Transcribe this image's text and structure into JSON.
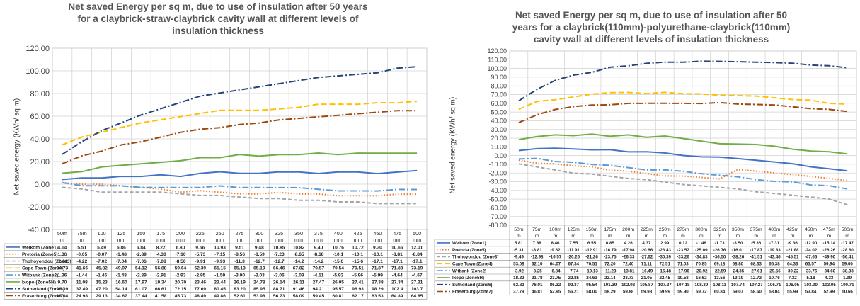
{
  "chart_data": [
    {
      "type": "line",
      "title": "Net saved Energy per sq m, due to use of insulation after 50 years for a claybrick-straw-claybrick cavity wall at different levels of insulation thickness",
      "ylabel": "Net saved energy (KWh/ sq m)",
      "xlabel": "",
      "ylim": [
        -40,
        120
      ],
      "ytick_step": 20,
      "ytick_labels": [
        "120.00",
        "100.00",
        "80.00",
        "60.00",
        "40.00",
        "20.00",
        "0.00",
        "-20.00",
        "-40.00"
      ],
      "grid": true,
      "legend": "table-below",
      "categories": [
        "50m m",
        "75m m",
        "100 mm",
        "125 mm",
        "150 mm",
        "175 mm",
        "200 mm",
        "225 mm",
        "250 mm",
        "275 mm",
        "300 mm",
        "325 mm",
        "350 mm",
        "375 mm",
        "400 mm",
        "425 mm",
        "450 mm",
        "475 mm",
        "500 mm"
      ],
      "series": [
        {
          "name": "Welkom (Zone1)",
          "color": "#4472C4",
          "dash": "solid",
          "values": [
            4.14,
            5.51,
            5.49,
            6.86,
            6.84,
            8.22,
            6.8,
            9.56,
            10.93,
            9.51,
            9.48,
            10.85,
            10.82,
            9.4,
            10.76,
            10.72,
            9.3,
            10.66,
            12.01
          ],
          "labels": [
            "4.14",
            "5.51",
            "5.49",
            "6.86",
            "6.84",
            "8.22",
            "6.80",
            "9.56",
            "10.93",
            "9.51",
            "9.48",
            "10.85",
            "10.82",
            "9.40",
            "10.76",
            "10.72",
            "9.30",
            "10.66",
            "12.01"
          ]
        },
        {
          "name": "Pretoria (Zone5)",
          "color": "#ED7D31",
          "dash": "dot",
          "values": [
            1.36,
            -0.05,
            -0.07,
            -1.48,
            -2.89,
            -4.3,
            -7.1,
            -5.73,
            -7.15,
            -8.56,
            -8.59,
            -7.23,
            -8.65,
            -8.68,
            -10.1,
            -10.1,
            -10.1,
            -8.81,
            -8.84
          ],
          "labels": [
            "1.36",
            "-0.05",
            "-0.07",
            "-1.48",
            "-2.89",
            "-4.30",
            "-7.10",
            "-5.73",
            "-7.15",
            "-8.56",
            "-8.59",
            "-7.23",
            "-8.65",
            "-8.68",
            "-10.1",
            "-10.1",
            "-10.1",
            "-8.81",
            "-8.84"
          ]
        },
        {
          "name": "Thohoyondou (Zone3)",
          "color": "#A5A5A5",
          "dash": "dash",
          "values": [
            -2.81,
            -4.22,
            -7.02,
            -7.04,
            -7.06,
            -7.08,
            -8.5,
            -9.91,
            -9.93,
            -11.3,
            -12.7,
            -12.7,
            -14.2,
            -14.2,
            -15.6,
            -15.6,
            -17.1,
            -17.1,
            -17.1
          ],
          "labels": [
            "-2.81",
            "-4.22",
            "-7.02",
            "-7.04",
            "-7.06",
            "-7.08",
            "-8.50",
            "-9.91",
            "-9.93",
            "-11.3",
            "-12.7",
            "-12.7",
            "-14.2",
            "-14.2",
            "-15.6",
            "-15.6",
            "-17.1",
            "-17.1",
            "-17.1"
          ]
        },
        {
          "name": "Cape Town (Zone4)",
          "color": "#FFC000",
          "dash": "longdash",
          "values": [
            34.73,
            41.66,
            45.82,
            49.97,
            54.12,
            56.88,
            59.64,
            62.39,
            65.15,
            65.13,
            65.1,
            66.46,
            67.82,
            70.57,
            70.54,
            70.51,
            71.87,
            71.83,
            73.19
          ],
          "labels": [
            "34.73",
            "41.66",
            "45.82",
            "49.97",
            "54.12",
            "56.88",
            "59.64",
            "62.39",
            "65.15",
            "65.13",
            "65.10",
            "66.46",
            "67.82",
            "70.57",
            "70.54",
            "70.51",
            "71.87",
            "71.83",
            "73.19"
          ]
        },
        {
          "name": "Witbank (Zone2)",
          "color": "#5B9BD5",
          "dash": "dashdot",
          "values": [
            1.36,
            -1.44,
            -1.46,
            -1.48,
            -2.89,
            -2.91,
            -2.93,
            -2.95,
            -1.59,
            -3.0,
            -3.03,
            -3.06,
            -3.09,
            -4.51,
            -5.93,
            -5.96,
            -5.99,
            -4.64,
            -4.67
          ],
          "labels": [
            "1.36",
            "-1.44",
            "-1.46",
            "-1.48",
            "-2.89",
            "-2.91",
            "-2.93",
            "-2.95",
            "-1.59",
            "-3.00",
            "-3.03",
            "-3.06",
            "-3.09",
            "-4.51",
            "-5.93",
            "-5.96",
            "-5.99",
            "-4.64",
            "-4.67"
          ]
        },
        {
          "name": "Ixopo (Zone5H)",
          "color": "#70AD47",
          "dash": "solid",
          "values": [
            9.7,
            11.08,
            15.23,
            16.6,
            17.97,
            19.34,
            20.7,
            23.46,
            23.44,
            26.19,
            24.78,
            26.14,
            26.11,
            27.47,
            26.05,
            27.41,
            27.38,
            27.34,
            27.31
          ],
          "labels": [
            "9.70",
            "11.08",
            "15.23",
            "16.60",
            "17.97",
            "19.34",
            "20.70",
            "23.46",
            "23.44",
            "26.19",
            "24.78",
            "26.14",
            "26.11",
            "27.47",
            "26.05",
            "27.41",
            "27.38",
            "27.34",
            "27.31"
          ]
        },
        {
          "name": "Sutherland (Zone6)",
          "color": "#264478",
          "dash": "dashdot",
          "values": [
            26.39,
            37.49,
            47.2,
            54.14,
            61.07,
            66.61,
            72.15,
            77.69,
            80.45,
            83.2,
            85.95,
            88.71,
            91.46,
            94.21,
            95.57,
            96.93,
            98.29,
            102.4,
            103.7
          ],
          "labels": [
            "26.39",
            "37.49",
            "47.20",
            "54.14",
            "61.07",
            "66.61",
            "72.15",
            "77.69",
            "80.45",
            "83.20",
            "85.95",
            "88.71",
            "91.46",
            "94.21",
            "95.57",
            "96.93",
            "98.29",
            "102.4",
            "103.7"
          ]
        },
        {
          "name": "Fraserburg (Zone7)",
          "color": "#9E480E",
          "dash": "dashdot",
          "values": [
            18.04,
            24.98,
            29.13,
            34.67,
            37.44,
            41.58,
            45.73,
            48.49,
            49.86,
            52.61,
            53.98,
            56.73,
            58.09,
            59.45,
            60.81,
            62.17,
            63.53,
            64.89,
            64.85
          ],
          "labels": [
            "18.04",
            "24.98",
            "29.13",
            "34.67",
            "37.44",
            "41.58",
            "45.73",
            "48.49",
            "49.86",
            "52.61",
            "53.98",
            "56.73",
            "58.09",
            "59.45",
            "60.81",
            "62.17",
            "63.53",
            "64.89",
            "64.85"
          ]
        }
      ]
    },
    {
      "type": "line",
      "title": "Net saved Energy per sq m, due to use of insulation after 50 years for a claybrick(110mm)-polyurethane-claybrick(110mm) cavity wall at different levels of insulation thickness",
      "ylabel": "Net saved energy (KWh/ sq m)",
      "xlabel": "",
      "ylim": [
        -80,
        120
      ],
      "ytick_step": 10,
      "ytick_labels": [
        "120.00",
        "110.00",
        "100.00",
        "90.00",
        "80.00",
        "70.00",
        "60.00",
        "50.00",
        "40.00",
        "30.00",
        "20.00",
        "10.00",
        "0.00",
        "-10.00",
        "-20.00",
        "-30.00",
        "-40.00",
        "-50.00",
        "-60.00",
        "-70.00",
        "-80.00"
      ],
      "grid": true,
      "legend": "table-below",
      "categories": [
        "50m m",
        "75m m",
        "100m m",
        "125m m",
        "150m m",
        "175m m",
        "200m m",
        "225m m",
        "250m m",
        "275m m",
        "300m m",
        "325m m",
        "350m m",
        "375m m",
        "400m m",
        "425m m",
        "450m m",
        "475m m",
        "500m m"
      ],
      "series": [
        {
          "name": "Welkom (Zone1)",
          "color": "#4472C4",
          "dash": "solid",
          "values": [
            5.81,
            7.88,
            8.46,
            7.55,
            6.55,
            6.85,
            4.26,
            4.37,
            2.99,
            0.12,
            -1.46,
            -1.73,
            -3.5,
            -5.36,
            -7.31,
            -9.36,
            -12.9,
            -15.14,
            -17.47
          ],
          "labels": [
            "5.81",
            "7.88",
            "8.46",
            "7.55",
            "6.55",
            "6.85",
            "4.26",
            "4.37",
            "2.99",
            "0.12",
            "-1.46",
            "-1.73",
            "-3.50",
            "-5.36",
            "-7.31",
            "-9.36",
            "-12.90",
            "-15.14",
            "-17.47"
          ]
        },
        {
          "name": "Pretoria (Zone5)",
          "color": "#ED7D31",
          "dash": "dot",
          "values": [
            -5.31,
            -8.81,
            -9.62,
            -11.91,
            -12.91,
            -16.79,
            -17.98,
            -20.66,
            -23.43,
            -23.52,
            -25.09,
            -26.76,
            -16.01,
            -17.87,
            -19.83,
            -21.88,
            -24.02,
            -26.26,
            -28.6
          ],
          "labels": [
            "-5.31",
            "-8.81",
            "-9.62",
            "-11.91",
            "-12.91",
            "-16.79",
            "-17.98",
            "-20.66",
            "-23.43",
            "-23.52",
            "-25.09",
            "-26.76",
            "-16.01",
            "-17.87",
            "-19.83",
            "-21.88",
            "-24.02",
            "-26.26",
            "-28.60"
          ]
        },
        {
          "name": "Thohoyondou (Zone3)",
          "color": "#A5A5A5",
          "dash": "dash",
          "values": [
            -9.49,
            -12.98,
            -16.57,
            -20.26,
            -21.26,
            -23.75,
            -26.33,
            -27.62,
            -30.39,
            -33.26,
            -34.83,
            -36.5,
            -38.26,
            -41.51,
            -43.46,
            -45.51,
            -47.66,
            -49.9,
            -56.41
          ],
          "labels": [
            "-9.49",
            "-12.98",
            "-16.57",
            "-20.26",
            "-21.26",
            "-23.75",
            "-26.33",
            "-27.62",
            "-30.39",
            "-33.26",
            "-34.83",
            "-36.50",
            "-38.26",
            "-41.51",
            "-43.46",
            "-45.51",
            "-47.66",
            "-49.90",
            "-56.41"
          ]
        },
        {
          "name": "Cape Town (Zone4)",
          "color": "#FFC000",
          "dash": "longdash",
          "values": [
            53.08,
            62.1,
            64.07,
            67.34,
            70.51,
            72.2,
            72.4,
            71.11,
            72.51,
            71.03,
            70.85,
            69.18,
            68.8,
            68.33,
            66.38,
            64.33,
            63.57,
            59.94,
            59.0
          ],
          "labels": [
            "53.08",
            "62.10",
            "64.07",
            "67.34",
            "70.51",
            "72.20",
            "72.40",
            "71.11",
            "72.51",
            "71.03",
            "70.85",
            "69.18",
            "68.80",
            "68.33",
            "66.38",
            "64.33",
            "63.57",
            "59.94",
            "59.00"
          ]
        },
        {
          "name": "Witbank (Zone2)",
          "color": "#5B9BD5",
          "dash": "dashdot",
          "values": [
            -3.92,
            -3.25,
            -6.84,
            -7.74,
            -10.13,
            -11.23,
            -13.81,
            -16.49,
            -16.48,
            -17.96,
            -20.92,
            -22.59,
            -24.35,
            -27.61,
            -29.56,
            -30.22,
            -33.76,
            -34.6,
            -38.33
          ],
          "labels": [
            "-3.92",
            "-3.25",
            "-6.84",
            "-7.74",
            "-10.13",
            "-11.23",
            "-13.81",
            "-16.49",
            "-16.48",
            "-17.96",
            "-20.92",
            "-22.59",
            "-24.35",
            "-27.61",
            "-29.56",
            "-30.22",
            "-33.76",
            "-34.60",
            "-38.33"
          ]
        },
        {
          "name": "Ixopo (Zone5H)",
          "color": "#70AD47",
          "dash": "solid",
          "values": [
            18.32,
            21.78,
            23.75,
            22.85,
            24.63,
            22.14,
            23.73,
            21.05,
            22.45,
            19.58,
            16.62,
            13.56,
            13.19,
            12.72,
            10.76,
            7.32,
            5.18,
            4.33,
            1.99
          ],
          "labels": [
            "18.32",
            "21.78",
            "23.75",
            "22.85",
            "24.63",
            "22.14",
            "23.73",
            "21.05",
            "22.45",
            "19.58",
            "16.62",
            "13.56",
            "13.19",
            "12.72",
            "10.76",
            "7.32",
            "5.18",
            "4.33",
            "1.99"
          ]
        },
        {
          "name": "Sutherland (Zone6)",
          "color": "#264478",
          "dash": "dashdot",
          "values": [
            62.82,
            76.01,
            86.32,
            92.37,
            95.54,
            101.39,
            102.98,
            105.87,
            107.27,
            107.18,
            108.39,
            108.11,
            107.74,
            107.27,
            106.71,
            106.05,
            103.9,
            103.05,
            100.71
          ],
          "labels": [
            "62.82",
            "76.01",
            "86.32",
            "92.37",
            "95.54",
            "101.39",
            "102.98",
            "105.87",
            "107.27",
            "107.18",
            "108.39",
            "108.11",
            "107.74",
            "107.27",
            "106.71",
            "106.05",
            "103.90",
            "103.05",
            "100.71"
          ]
        },
        {
          "name": "Fraserburg (Zone7)",
          "color": "#9E480E",
          "dash": "dashdot",
          "values": [
            37.79,
            46.81,
            52.95,
            56.21,
            58.0,
            58.29,
            59.88,
            59.98,
            59.99,
            59.9,
            59.72,
            60.84,
            59.07,
            58.6,
            58.04,
            55.99,
            53.84,
            52.99,
            50.66
          ],
          "labels": [
            "37.79",
            "46.81",
            "52.95",
            "56.21",
            "58.00",
            "58.29",
            "59.88",
            "59.98",
            "59.99",
            "59.90",
            "59.72",
            "60.84",
            "59.07",
            "58.60",
            "58.04",
            "55.99",
            "53.84",
            "52.99",
            "50.66"
          ]
        }
      ]
    }
  ]
}
